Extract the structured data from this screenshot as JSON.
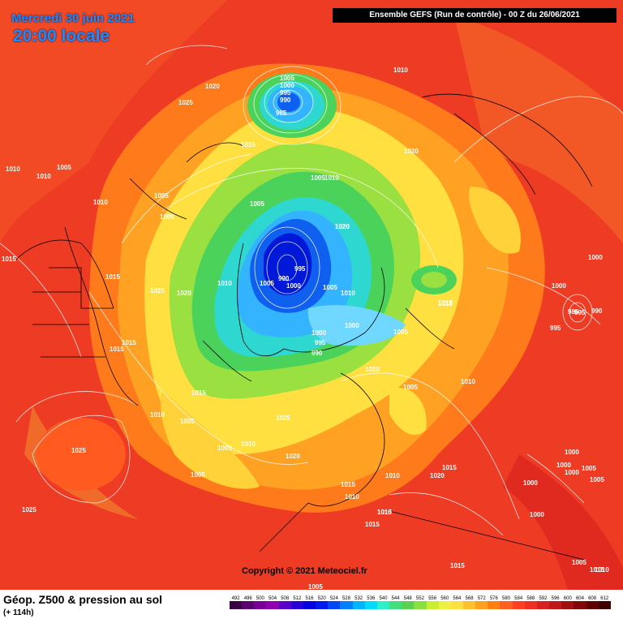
{
  "header": {
    "date": "Mercredi 30 juin 2021",
    "local_time": "20:00 locale",
    "model_run": "Ensemble GEFS  (Run de contrôle)  - 00 Z du 26/06/2021"
  },
  "copyright": "Copyright © 2021 Meteociel.fr",
  "legend": {
    "title": "Géop. Z500 & pression au sol",
    "subtitle": "(+ 114h)",
    "scale_values": [
      "492",
      "496",
      "500",
      "504",
      "508",
      "512",
      "516",
      "520",
      "524",
      "528",
      "532",
      "536",
      "540",
      "544",
      "548",
      "552",
      "556",
      "560",
      "564",
      "568",
      "572",
      "576",
      "580",
      "584",
      "588",
      "592",
      "596",
      "600",
      "604",
      "608",
      "612"
    ],
    "scale_colors": [
      "#3a0045",
      "#5c0070",
      "#7a0095",
      "#9200b0",
      "#5a00c8",
      "#2a00d8",
      "#0000e0",
      "#0018f0",
      "#0048f8",
      "#0080ff",
      "#00b4ff",
      "#00dcff",
      "#2ef0c8",
      "#40e080",
      "#5ad250",
      "#8ae040",
      "#c8f030",
      "#f0f040",
      "#ffe040",
      "#ffc030",
      "#ffa020",
      "#ff8010",
      "#ff6020",
      "#ff4020",
      "#ee3020",
      "#d82020",
      "#c01818",
      "#a01010",
      "#800808",
      "#600000",
      "#400000"
    ]
  },
  "isobar_labels": [
    {
      "text": "1005"
    },
    {
      "text": "1000"
    },
    {
      "text": "995"
    },
    {
      "text": "990"
    },
    {
      "text": "985"
    },
    {
      "text": "1020"
    },
    {
      "text": "1025"
    },
    {
      "text": "1015"
    },
    {
      "text": "1010"
    },
    {
      "text": "1010"
    },
    {
      "text": "1010"
    },
    {
      "text": "1005"
    },
    {
      "text": "1010"
    },
    {
      "text": "1005"
    },
    {
      "text": "1000"
    },
    {
      "text": "1015"
    },
    {
      "text": "1015"
    },
    {
      "text": "1025"
    },
    {
      "text": "1020"
    },
    {
      "text": "1010"
    },
    {
      "text": "1005"
    },
    {
      "text": "1000"
    },
    {
      "text": "995"
    },
    {
      "text": "990"
    },
    {
      "text": "1005"
    },
    {
      "text": "1010"
    },
    {
      "text": "1020"
    },
    {
      "text": "1000"
    },
    {
      "text": "995"
    },
    {
      "text": "990"
    },
    {
      "text": "1000"
    },
    {
      "text": "1005"
    },
    {
      "text": "1015"
    },
    {
      "text": "1015"
    },
    {
      "text": "1015"
    },
    {
      "text": "1015"
    },
    {
      "text": "1010"
    },
    {
      "text": "1005"
    },
    {
      "text": "1025"
    },
    {
      "text": "1005"
    },
    {
      "text": "1010"
    },
    {
      "text": "1020"
    },
    {
      "text": "1025"
    },
    {
      "text": "1020"
    },
    {
      "text": "1005"
    },
    {
      "text": "1015"
    },
    {
      "text": "1025"
    },
    {
      "text": "1005"
    },
    {
      "text": "1020"
    },
    {
      "text": "1010"
    },
    {
      "text": "1015"
    },
    {
      "text": "1010"
    },
    {
      "text": "1010"
    },
    {
      "text": "1015"
    },
    {
      "text": "1015"
    },
    {
      "text": "1010"
    },
    {
      "text": "1020"
    },
    {
      "text": "1005"
    },
    {
      "text": "1005"
    },
    {
      "text": "1020"
    },
    {
      "text": "1015"
    },
    {
      "text": "1010"
    },
    {
      "text": "1000"
    },
    {
      "text": "1000"
    },
    {
      "text": "995"
    },
    {
      "text": "990"
    },
    {
      "text": "985"
    },
    {
      "text": "995"
    },
    {
      "text": "1000"
    },
    {
      "text": "1005"
    },
    {
      "text": "1000"
    },
    {
      "text": "1000"
    },
    {
      "text": "1005"
    },
    {
      "text": "1000"
    },
    {
      "text": "1000"
    },
    {
      "text": "1005"
    },
    {
      "text": "1010"
    },
    {
      "text": "1015"
    },
    {
      "text": "1015"
    },
    {
      "text": "1005"
    }
  ]
}
